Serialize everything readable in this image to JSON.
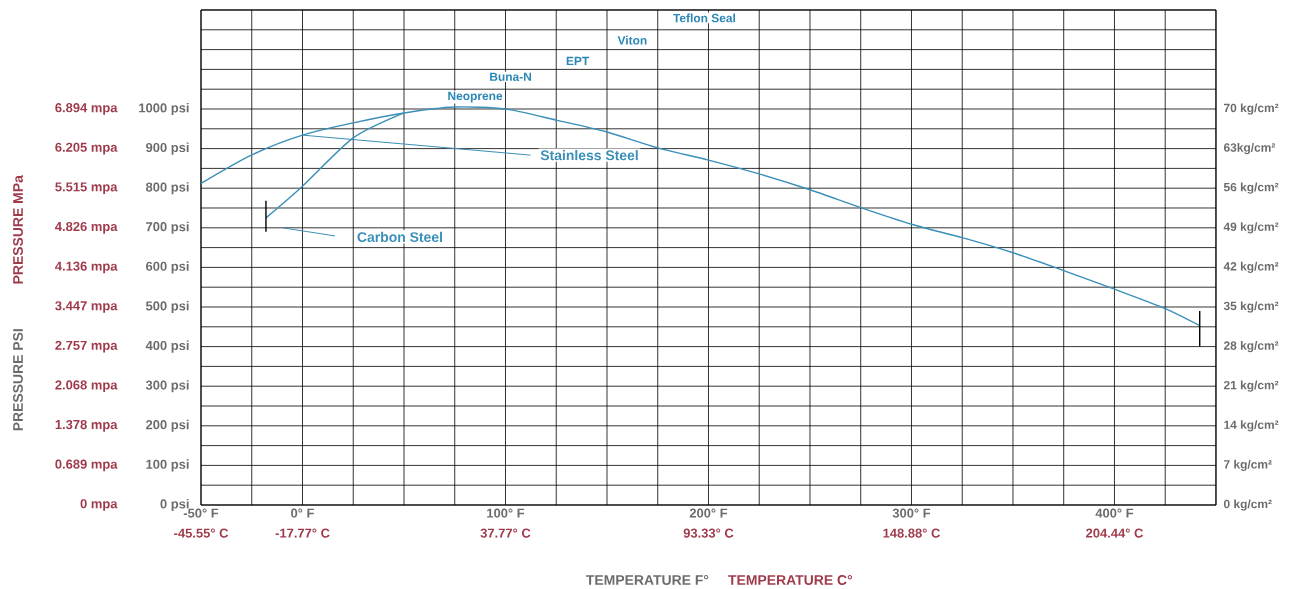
{
  "chart_data": {
    "type": "line",
    "xlabel": "TEMPERATURE F°",
    "x2label": "TEMPERATURE C°",
    "ylabel": "PRESSURE PSI",
    "y3label": "PRESSURE MPa",
    "xlim": [
      -50,
      450
    ],
    "xticks": [
      {
        "value": -50,
        "label": "-50° F"
      },
      {
        "value": -25,
        "label": null
      },
      {
        "value": 0,
        "label": "0° F"
      },
      {
        "value": 25,
        "label": null
      },
      {
        "value": 50,
        "label": null
      },
      {
        "value": 75,
        "label": null
      },
      {
        "value": 100,
        "label": "100° F"
      },
      {
        "value": 125,
        "label": null
      },
      {
        "value": 150,
        "label": null
      },
      {
        "value": 175,
        "label": null
      },
      {
        "value": 200,
        "label": "200° F"
      },
      {
        "value": 225,
        "label": null
      },
      {
        "value": 250,
        "label": null
      },
      {
        "value": 275,
        "label": null
      },
      {
        "value": 300,
        "label": "300° F"
      },
      {
        "value": 325,
        "label": null
      },
      {
        "value": 350,
        "label": null
      },
      {
        "value": 375,
        "label": null
      },
      {
        "value": 400,
        "label": "400° F"
      },
      {
        "value": 425,
        "label": null
      },
      {
        "value": 450,
        "label": null
      }
    ],
    "x2lim": [
      -45.56,
      232.22
    ],
    "x2ticks": [
      {
        "value": -45.55,
        "label": "-45.55° C"
      },
      {
        "value": -17.77,
        "label": "-17.77° C"
      },
      {
        "value": 37.77,
        "label": "37.77° C"
      },
      {
        "value": 93.33,
        "label": "93.33° C"
      },
      {
        "value": 148.88,
        "label": "148.88° C"
      },
      {
        "value": 204.44,
        "label": "204.44° C"
      }
    ],
    "ylim": [
      0,
      1250
    ],
    "yticks": [
      {
        "value": 0,
        "label": "0 psi"
      },
      {
        "value": 50,
        "label": null
      },
      {
        "value": 100,
        "label": "100 psi"
      },
      {
        "value": 150,
        "label": null
      },
      {
        "value": 200,
        "label": "200 psi"
      },
      {
        "value": 250,
        "label": null
      },
      {
        "value": 300,
        "label": "300 psi"
      },
      {
        "value": 350,
        "label": null
      },
      {
        "value": 400,
        "label": "400 psi"
      },
      {
        "value": 450,
        "label": null
      },
      {
        "value": 500,
        "label": "500 psi"
      },
      {
        "value": 550,
        "label": null
      },
      {
        "value": 600,
        "label": "600 psi"
      },
      {
        "value": 650,
        "label": null
      },
      {
        "value": 700,
        "label": "700 psi"
      },
      {
        "value": 750,
        "label": null
      },
      {
        "value": 800,
        "label": "800 psi"
      },
      {
        "value": 850,
        "label": null
      },
      {
        "value": 900,
        "label": "900 psi"
      },
      {
        "value": 950,
        "label": null
      },
      {
        "value": 1000,
        "label": "1000 psi"
      },
      {
        "value": 1050,
        "label": null
      },
      {
        "value": 1100,
        "label": null
      },
      {
        "value": 1150,
        "label": null
      },
      {
        "value": 1200,
        "label": null
      },
      {
        "value": 1250,
        "label": null
      }
    ],
    "y2lim": [
      0,
      87.5
    ],
    "y2ticks": [
      {
        "value": 0,
        "label": "0 kg/cm²"
      },
      {
        "value": 7,
        "label": "7 kg/cm²"
      },
      {
        "value": 14,
        "label": "14 kg/cm²"
      },
      {
        "value": 21,
        "label": "21 kg/cm²"
      },
      {
        "value": 28,
        "label": "28 kg/cm²"
      },
      {
        "value": 35,
        "label": "35 kg/cm²"
      },
      {
        "value": 42,
        "label": "42 kg/cm²"
      },
      {
        "value": 49,
        "label": "49 kg/cm²"
      },
      {
        "value": 56,
        "label": "56 kg/cm²"
      },
      {
        "value": 63,
        "label": "63kg/cm²"
      },
      {
        "value": 70,
        "label": "70 kg/cm²"
      }
    ],
    "y3lim": [
      0,
      8.6175
    ],
    "y3ticks": [
      {
        "value": 0,
        "label": "0 mpa"
      },
      {
        "value": 0.689,
        "label": "0.689 mpa"
      },
      {
        "value": 1.378,
        "label": "1.378 mpa"
      },
      {
        "value": 2.068,
        "label": "2.068 mpa"
      },
      {
        "value": 2.757,
        "label": "2.757 mpa"
      },
      {
        "value": 3.447,
        "label": "3.447 mpa"
      },
      {
        "value": 4.136,
        "label": "4.136 mpa"
      },
      {
        "value": 4.826,
        "label": "4.826 mpa"
      },
      {
        "value": 5.515,
        "label": "5.515 mpa"
      },
      {
        "value": 6.205,
        "label": "6.205 mpa"
      },
      {
        "value": 6.894,
        "label": "6.894 mpa"
      }
    ],
    "grid": true,
    "marker": "none",
    "line_style": "solid",
    "series": [
      {
        "name": "Stainless Steel",
        "color": "#3a8fb8",
        "x": [
          -50,
          -25,
          0,
          25,
          50,
          75,
          100,
          125,
          150,
          175,
          200,
          225,
          250,
          275,
          300,
          325,
          350,
          375,
          400,
          425,
          442
        ],
        "values": [
          812,
          884,
          934,
          965,
          990,
          1005,
          1000,
          972,
          942,
          902,
          871,
          836,
          796,
          751,
          709,
          675,
          637,
          592,
          545,
          496,
          453
        ]
      },
      {
        "name": "Carbon Steel",
        "color": "#3a8fb8",
        "x": [
          -18,
          0,
          25,
          50
        ],
        "values": [
          725,
          805,
          927,
          990
        ]
      },
      {
        "color": "#000000",
        "x": [
          -18,
          -18
        ],
        "values": [
          690,
          768
        ]
      },
      {
        "color": "#000000",
        "x": [
          442,
          442
        ],
        "values": [
          400,
          490
        ]
      }
    ],
    "annotations": [
      "Neoprene",
      "Buna-N",
      "EPT",
      "Viton",
      "Teflon Seal"
    ]
  }
}
